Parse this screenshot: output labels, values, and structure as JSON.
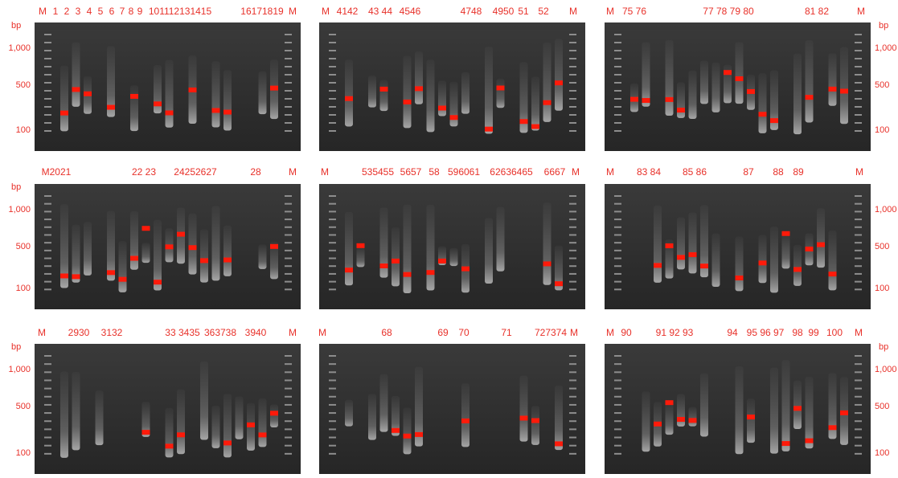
{
  "panels": [
    {
      "lanes": [
        "M",
        "1",
        "2",
        "3",
        "4",
        "5",
        "6",
        "7",
        "8",
        "9",
        "101112131415",
        "16171819",
        "M"
      ],
      "scale": {
        "unit": "bp",
        "labels": [
          "1,000",
          "500",
          "100"
        ]
      }
    },
    {
      "lanes": [
        "M",
        "4142",
        "43 44",
        "4546",
        "4748",
        "4950",
        "51",
        "52",
        "M"
      ]
    },
    {
      "lanes": [
        "M",
        "75 76",
        "77 78 79 80",
        "81 82",
        "M"
      ],
      "scale": {
        "unit": "bp",
        "labels": [
          "1,000",
          "500",
          "100"
        ]
      }
    },
    {
      "lanes": [
        "M2021",
        "22 23",
        "24252627",
        "28",
        "M"
      ],
      "scale": {
        "unit": "bp",
        "labels": [
          "1,000",
          "500",
          "100"
        ]
      }
    },
    {
      "lanes": [
        "M",
        "535455",
        "5657",
        "58",
        "596061",
        "62636465",
        "6667",
        "M"
      ]
    },
    {
      "lanes": [
        "M",
        "83 84",
        "85 86",
        "87",
        "88",
        "89",
        "M"
      ],
      "scale": {
        "labels": [
          "1,000",
          "500",
          "100"
        ]
      }
    },
    {
      "lanes": [
        "M",
        "2930",
        "3132",
        "33 3435",
        "363738",
        "3940",
        "M"
      ],
      "scale": {
        "unit": "bp",
        "labels": [
          "1,000",
          "500",
          "100"
        ]
      }
    },
    {
      "lanes": [
        "M",
        "68",
        "69",
        "70",
        "71",
        "727374",
        "M"
      ]
    },
    {
      "lanes": [
        "M",
        "90",
        "91 92 93",
        "94",
        "95 96 97",
        "98",
        "99",
        "100",
        "M"
      ],
      "scale": {
        "unit": "bp",
        "labels": [
          "1,000",
          "500",
          "100"
        ]
      }
    }
  ]
}
